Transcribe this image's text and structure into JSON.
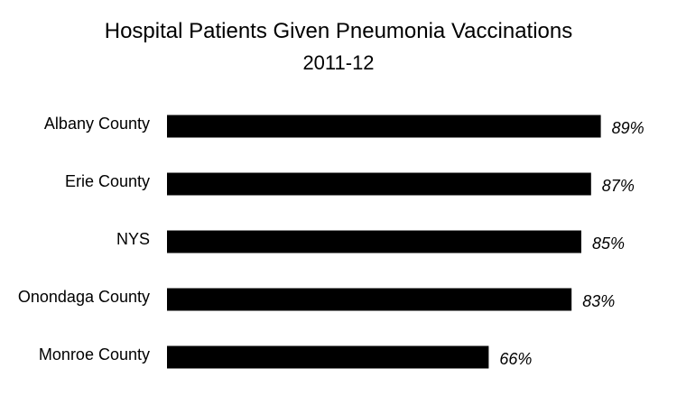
{
  "chart_data": {
    "type": "bar",
    "orientation": "horizontal",
    "title": "Hospital Patients Given Pneumonia Vaccinations",
    "subtitle": "2011-12",
    "categories": [
      "Albany County",
      "Erie County",
      "NYS",
      "Onondaga County",
      "Monroe County"
    ],
    "values": [
      89,
      87,
      85,
      83,
      66
    ],
    "value_labels": [
      "89%",
      "87%",
      "85%",
      "83%",
      "66%"
    ],
    "xlim": [
      0,
      100
    ],
    "grid": false,
    "legend": "none",
    "bar_color": "#000000"
  }
}
